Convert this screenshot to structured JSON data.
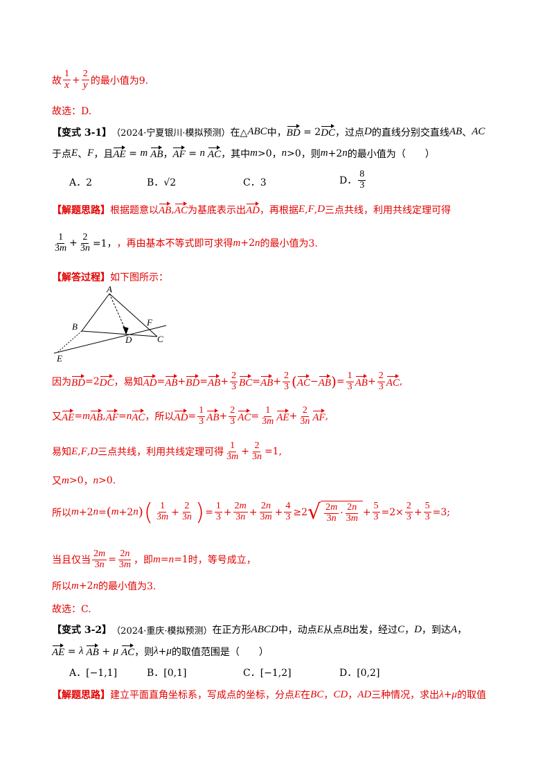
{
  "l1": {
    "a": "故",
    "b": "的最小值为9."
  },
  "l2": "故选：D.",
  "q1": {
    "tag": "【变式 3-1】",
    "src": "（2024·宁夏银川·模拟预测）",
    "t1": "在△",
    "t2": "中，",
    "t3": "，过点",
    "t4": "的直线分别交直线",
    "t5": "、",
    "l2a": "于点",
    "l2b": "、",
    "l2c": "，且",
    "l2d": "，",
    "l2e": "，其中",
    "l2f": "，",
    "l2g": "，则",
    "l2h": "的最小值为（　　）",
    "options": [
      "A．2",
      "B．√2",
      "C．3",
      "D．"
    ]
  },
  "thinking1": {
    "tag": "【解题思路】",
    "a": "根据题意以",
    "b": "为基底表示出",
    "c": "，再根据",
    "d": "三点共线，利用共线定理可得",
    "e": "，再由基本不等式即可求得",
    "f": "的最小值为3."
  },
  "process": {
    "tag": "【解答过程】",
    "text": "如下图所示："
  },
  "figure_labels": {
    "A": "A",
    "B": "B",
    "C": "C",
    "D": "D",
    "E": "E",
    "F": "F"
  },
  "s1": {
    "a": "因为",
    "b": "，易知"
  },
  "s2": {
    "a": "又",
    "b": "，所以"
  },
  "s3": {
    "a": "易知",
    "b": "三点共线，利用共线定理可得"
  },
  "s4": {
    "a": "又",
    "b": "，"
  },
  "s5": {
    "a": "所以"
  },
  "s6": {
    "a": "当且仅当",
    "b": "，即",
    "c": "时，等号成立，"
  },
  "s7": {
    "a": "所以",
    "b": "的最小值为3."
  },
  "s8": "故选：C.",
  "q2": {
    "tag": "【变式 3-2】",
    "src": "（2024·重庆·模拟预测）",
    "t1": "在正方形",
    "t2": "中，动点",
    "t3": "从点",
    "t4": "出发，经过",
    "t5": "，",
    "t6": "，到达",
    "t7": "，",
    "l2a": "，则",
    "l2b": "的取值范围是（　　）",
    "options": [
      "A．[−1,1]",
      "B．[0,1]",
      "C．[−1,2]",
      "D．[0,2]"
    ]
  },
  "thinking2": {
    "tag": "【解题思路】",
    "a": "建立平面直角坐标系，写成点的坐标，分点",
    "b": "在",
    "c": "，",
    "d": "，",
    "e": "三种情况，求出",
    "f": "的取值"
  }
}
